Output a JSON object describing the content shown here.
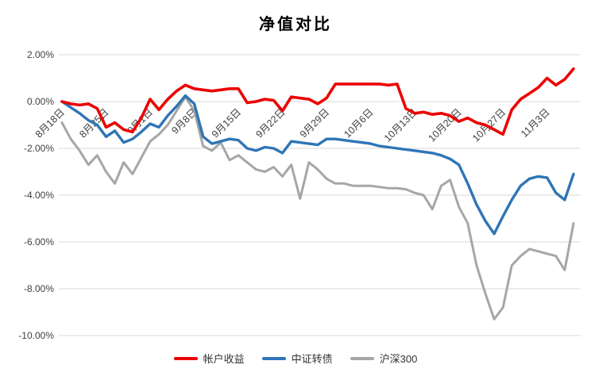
{
  "chart_data": {
    "type": "line",
    "title": "净值对比",
    "xlabel": "",
    "ylabel": "",
    "ylim": [
      -10,
      2
    ],
    "grid": "horizontal-only",
    "legend_position": "bottom",
    "x_label_step": 5,
    "y_ticks": [
      {
        "label": "2.00%",
        "value": 2
      },
      {
        "label": "0.00%",
        "value": 0
      },
      {
        "label": "-2.00%",
        "value": -2
      },
      {
        "label": "-4.00%",
        "value": -4
      },
      {
        "label": "-6.00%",
        "value": -6
      },
      {
        "label": "-8.00%",
        "value": -8
      },
      {
        "label": "-10.00%",
        "value": -10
      }
    ],
    "x_labels": [
      "8月18日",
      "8月25日",
      "9月1日",
      "9月8日",
      "9月15日",
      "9月22日",
      "9月29日",
      "10月6日",
      "10月13日",
      "10月20日",
      "10月27日",
      "11月3日"
    ],
    "series": [
      {
        "name": "帐户收益",
        "color": "#ec0000",
        "width": 3.6,
        "values": [
          0.0,
          -0.1,
          -0.15,
          -0.1,
          -0.3,
          -1.1,
          -0.9,
          -1.2,
          -1.3,
          -0.7,
          0.1,
          -0.35,
          0.1,
          0.45,
          0.7,
          0.55,
          0.5,
          0.45,
          0.5,
          0.55,
          0.55,
          -0.05,
          0.0,
          0.1,
          0.05,
          -0.4,
          0.2,
          0.15,
          0.1,
          -0.1,
          0.15,
          0.75,
          0.75,
          0.75,
          0.75,
          0.75,
          0.75,
          0.7,
          0.75,
          -0.3,
          -0.5,
          -0.45,
          -0.55,
          -0.5,
          -0.6,
          -0.85,
          -0.7,
          -0.9,
          -1.0,
          -1.2,
          -1.4,
          -0.35,
          0.1,
          0.35,
          0.6,
          1.0,
          0.7,
          0.95,
          1.4
        ]
      },
      {
        "name": "中证转债",
        "color": "#2e75b6",
        "width": 3.4,
        "values": [
          0.0,
          -0.25,
          -0.5,
          -0.8,
          -1.0,
          -1.5,
          -1.25,
          -1.75,
          -1.6,
          -1.3,
          -0.95,
          -1.1,
          -0.6,
          -0.2,
          0.25,
          -0.1,
          -1.5,
          -1.8,
          -1.7,
          -1.6,
          -1.65,
          -2.0,
          -2.1,
          -1.95,
          -2.0,
          -2.2,
          -1.7,
          -1.75,
          -1.8,
          -1.85,
          -1.6,
          -1.6,
          -1.65,
          -1.7,
          -1.75,
          -1.8,
          -1.9,
          -1.95,
          -2.0,
          -2.05,
          -2.1,
          -2.15,
          -2.2,
          -2.3,
          -2.45,
          -2.7,
          -3.5,
          -4.4,
          -5.1,
          -5.65,
          -4.9,
          -4.2,
          -3.6,
          -3.3,
          -3.2,
          -3.25,
          -3.9,
          -4.2,
          -3.1
        ]
      },
      {
        "name": "沪深300",
        "color": "#a6a6a6",
        "width": 3.0,
        "values": [
          -0.9,
          -1.6,
          -2.1,
          -2.7,
          -2.3,
          -3.0,
          -3.5,
          -2.6,
          -3.1,
          -2.4,
          -1.7,
          -1.4,
          -1.0,
          -0.4,
          0.2,
          -0.4,
          -1.9,
          -2.1,
          -1.75,
          -2.5,
          -2.3,
          -2.6,
          -2.9,
          -3.0,
          -2.8,
          -3.2,
          -2.7,
          -4.15,
          -2.6,
          -2.9,
          -3.3,
          -3.5,
          -3.5,
          -3.6,
          -3.6,
          -3.6,
          -3.65,
          -3.7,
          -3.7,
          -3.75,
          -3.9,
          -4.0,
          -4.6,
          -3.6,
          -3.35,
          -4.5,
          -5.2,
          -7.0,
          -8.2,
          -9.3,
          -8.8,
          -7.0,
          -6.6,
          -6.3,
          -6.4,
          -6.5,
          -6.6,
          -7.2,
          -5.2
        ]
      }
    ],
    "style": {
      "gridline_color": "#d9d9d9",
      "axis_label_color": "#404040",
      "background": "#ffffff"
    }
  }
}
